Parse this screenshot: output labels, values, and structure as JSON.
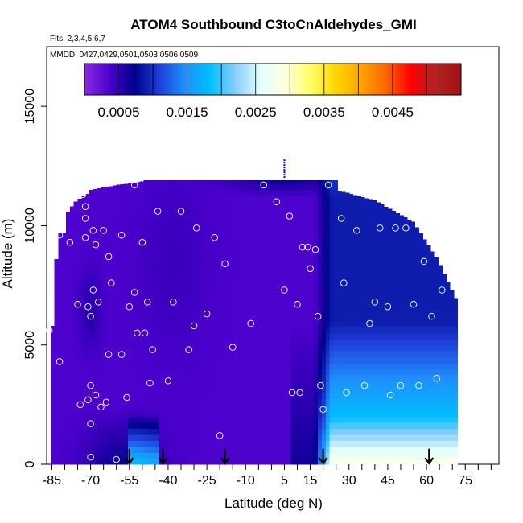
{
  "chart_data": {
    "type": "heatmap",
    "title": "ATOM4 Southbound C3toCnAldehydes_GMI",
    "subtitle_flights": "Flts: 2,3,4,5,6,7",
    "subtitle_dates": "MMDD: 0427,0429,0501,0503,0506,0509",
    "xlabel": "Latitude (deg N)",
    "ylabel": "Altitude (m)",
    "xlim": [
      -87,
      88
    ],
    "ylim": [
      0,
      17500
    ],
    "xticks": [
      -85,
      -70,
      -55,
      -40,
      -25,
      -10,
      5,
      15,
      30,
      45,
      60,
      75
    ],
    "yticks": [
      0,
      5000,
      10000,
      15000
    ],
    "colorbar": {
      "range": [
        0.0,
        0.0055
      ],
      "tick_values": [
        0.0005,
        0.0015,
        0.0025,
        0.0035,
        0.0045
      ],
      "tick_labels": [
        "0.0005",
        "0.0015",
        "0.0025",
        "0.0035",
        "0.0045"
      ],
      "colors": [
        "#8a2be2",
        "#4b00cc",
        "#00008b",
        "#1e3fd8",
        "#1e90ff",
        "#00bfff",
        "#87cefa",
        "#e0ffff",
        "#ffffe0",
        "#ffff66",
        "#ffd700",
        "#ffa500",
        "#ff6600",
        "#ff0000",
        "#b22222",
        "#a01010"
      ]
    },
    "arrow_latitudes": [
      -55,
      -42,
      -18,
      20,
      61
    ],
    "sample_points": [
      [
        -86,
        5600
      ],
      [
        -82,
        9600
      ],
      [
        -82,
        4300
      ],
      [
        -78,
        9300
      ],
      [
        -75,
        6700
      ],
      [
        -74,
        2500
      ],
      [
        -73,
        11300
      ],
      [
        -72,
        10800
      ],
      [
        -72,
        10300
      ],
      [
        -72,
        9500
      ],
      [
        -71,
        6600
      ],
      [
        -71,
        2700
      ],
      [
        -70,
        6200
      ],
      [
        -70,
        3300
      ],
      [
        -70,
        1700
      ],
      [
        -70,
        300
      ],
      [
        -69,
        9800
      ],
      [
        -69,
        7300
      ],
      [
        -68,
        9200
      ],
      [
        -68,
        2900
      ],
      [
        -67,
        6800
      ],
      [
        -66,
        2400
      ],
      [
        -65,
        9800
      ],
      [
        -64,
        2600
      ],
      [
        -63,
        8700
      ],
      [
        -63,
        4600
      ],
      [
        -62,
        7600
      ],
      [
        -60,
        200
      ],
      [
        -58,
        9600
      ],
      [
        -58,
        4600
      ],
      [
        -56,
        2800
      ],
      [
        -55,
        6600
      ],
      [
        -53,
        11700
      ],
      [
        -53,
        7200
      ],
      [
        -52,
        5500
      ],
      [
        -50,
        9300
      ],
      [
        -49,
        5500
      ],
      [
        -48,
        6800
      ],
      [
        -47,
        3400
      ],
      [
        -46,
        4800
      ],
      [
        -44,
        10600
      ],
      [
        -40,
        3500
      ],
      [
        -38,
        6800
      ],
      [
        -35,
        10600
      ],
      [
        -32,
        4800
      ],
      [
        -30,
        5800
      ],
      [
        -29,
        9900
      ],
      [
        -25,
        6300
      ],
      [
        -22,
        9500
      ],
      [
        -20,
        1200
      ],
      [
        -18,
        8400
      ],
      [
        -15,
        4900
      ],
      [
        -8,
        5900
      ],
      [
        -3,
        11700
      ],
      [
        2,
        11000
      ],
      [
        5,
        7300
      ],
      [
        7,
        10400
      ],
      [
        8,
        3000
      ],
      [
        10,
        6700
      ],
      [
        11,
        3000
      ],
      [
        12,
        9100
      ],
      [
        14,
        9100
      ],
      [
        15,
        8200
      ],
      [
        17,
        9000
      ],
      [
        18,
        6200
      ],
      [
        19,
        3300
      ],
      [
        20,
        2300
      ],
      [
        22,
        11700
      ],
      [
        27,
        10300
      ],
      [
        28,
        7600
      ],
      [
        29,
        3000
      ],
      [
        33,
        9800
      ],
      [
        36,
        3300
      ],
      [
        38,
        5900
      ],
      [
        40,
        6800
      ],
      [
        42,
        9900
      ],
      [
        45,
        6600
      ],
      [
        46,
        2900
      ],
      [
        48,
        9900
      ],
      [
        50,
        3300
      ],
      [
        52,
        9900
      ],
      [
        55,
        6700
      ],
      [
        57,
        3300
      ],
      [
        59,
        8500
      ],
      [
        62,
        6200
      ],
      [
        64,
        3600
      ],
      [
        66,
        7300
      ]
    ]
  }
}
